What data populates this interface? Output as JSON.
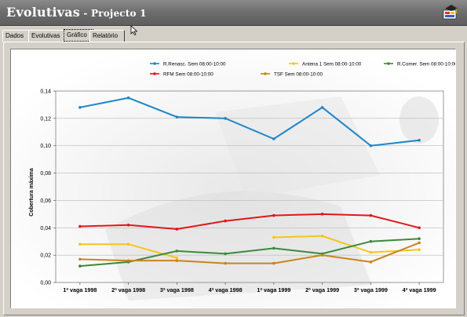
{
  "window": {
    "title": "Evolutivas",
    "title_separator": " - ",
    "subtitle": "Projecto 1",
    "app_icon": "graduation-cap-icon"
  },
  "tabs": [
    {
      "label": "Dados",
      "active": false
    },
    {
      "label": "Evolutivas",
      "active": false
    },
    {
      "label": "Gráfico",
      "active": true
    },
    {
      "label": "Relatório",
      "active": false
    }
  ],
  "chart_data": {
    "type": "line",
    "title": "",
    "xlabel": "",
    "ylabel": "Cobertura máxima",
    "ylim": [
      0,
      0.14
    ],
    "yticks": [
      "0,00",
      "0,02",
      "0,04",
      "0,06",
      "0,08",
      "0,10",
      "0,12",
      "0,14"
    ],
    "categories": [
      "1ª vaga 1998",
      "2ª vaga 1998",
      "3ª vaga 1998",
      "4ª vaga 1998",
      "1ª vaga 1999",
      "2ª vaga 1999",
      "3ª vaga 1999",
      "4ª vaga 1999"
    ],
    "grid": true,
    "legend_position": "top-right",
    "series": [
      {
        "name": "R.Renasc. Sem 08:00-10:00",
        "color": "#1f86c8",
        "values": [
          0.128,
          0.135,
          0.121,
          0.12,
          0.105,
          0.128,
          0.1,
          0.104
        ]
      },
      {
        "name": "Antena 1 Sem 08:00-10:00",
        "color": "#f5c518",
        "values": [
          0.028,
          0.028,
          0.018,
          null,
          0.033,
          0.034,
          0.022,
          0.024
        ]
      },
      {
        "name": "R.Comer. Sem 08:00-10:00",
        "color": "#3a8a3a",
        "values": [
          0.012,
          0.015,
          0.023,
          0.021,
          0.025,
          0.021,
          0.03,
          0.032
        ]
      },
      {
        "name": "RFM      Sem 08:00-10:00",
        "color": "#e01818",
        "values": [
          0.041,
          0.042,
          0.039,
          0.045,
          0.049,
          0.05,
          0.049,
          0.04
        ]
      },
      {
        "name": "TSF      Sem 08:00-10:00",
        "color": "#c8841e",
        "values": [
          0.017,
          0.016,
          0.016,
          0.014,
          0.014,
          0.02,
          0.015,
          0.029
        ]
      }
    ]
  }
}
